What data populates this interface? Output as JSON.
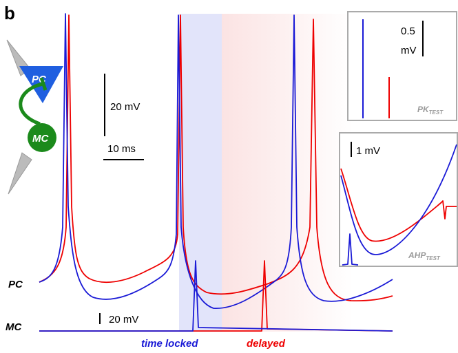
{
  "panel_label": "b",
  "diagram": {
    "pc_label": "PC",
    "mc_label": "MC"
  },
  "scale_bars": {
    "voltage": "20 mV",
    "time": "10 ms"
  },
  "traces": {
    "labels": [
      "PC",
      "MC"
    ],
    "mc_scale": "20 mV"
  },
  "shading": {
    "time_locked": "time locked",
    "delayed": "delayed"
  },
  "insets": [
    {
      "scale_lines": [
        "0.5",
        "mV"
      ],
      "label": "PK",
      "label_sub": "TEST"
    },
    {
      "scale": "1 mV",
      "label": "AHP",
      "label_sub": "TEST"
    }
  ]
}
